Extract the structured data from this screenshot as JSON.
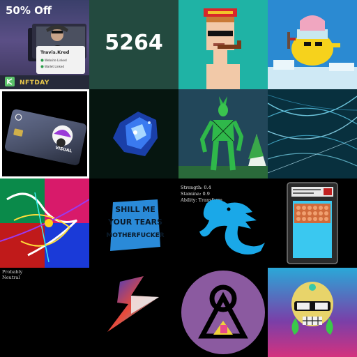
{
  "tiles": [
    {
      "id": "t1",
      "sale": "50% Off",
      "name": "Travis.Kred",
      "line1": "Website Linked",
      "line2": "Wallet Linked",
      "day": "NFTDAY"
    },
    {
      "id": "t2",
      "number": "5264"
    },
    {
      "id": "t3"
    },
    {
      "id": "t4"
    },
    {
      "id": "t5",
      "card_text": "VISUAL"
    },
    {
      "id": "t6"
    },
    {
      "id": "t7"
    },
    {
      "id": "t8"
    },
    {
      "id": "t9"
    },
    {
      "id": "t10",
      "sign_text": "SHILL ME YOUR TEARS MOTHERFUCKER"
    },
    {
      "id": "t11",
      "strength": "Strength: 0.4",
      "stamina": "Stamina: 0.9",
      "ability": "Ability: Transform"
    },
    {
      "id": "t12"
    },
    {
      "id": "t13",
      "line1": "Probably",
      "line2": "Neutral"
    },
    {
      "id": "t14"
    },
    {
      "id": "t15"
    },
    {
      "id": "t16"
    }
  ],
  "colors": {
    "accent_gold": "#e9c84a",
    "dragon_blue": "#1aa8e8",
    "circle_purple": "#8b5aa0"
  }
}
